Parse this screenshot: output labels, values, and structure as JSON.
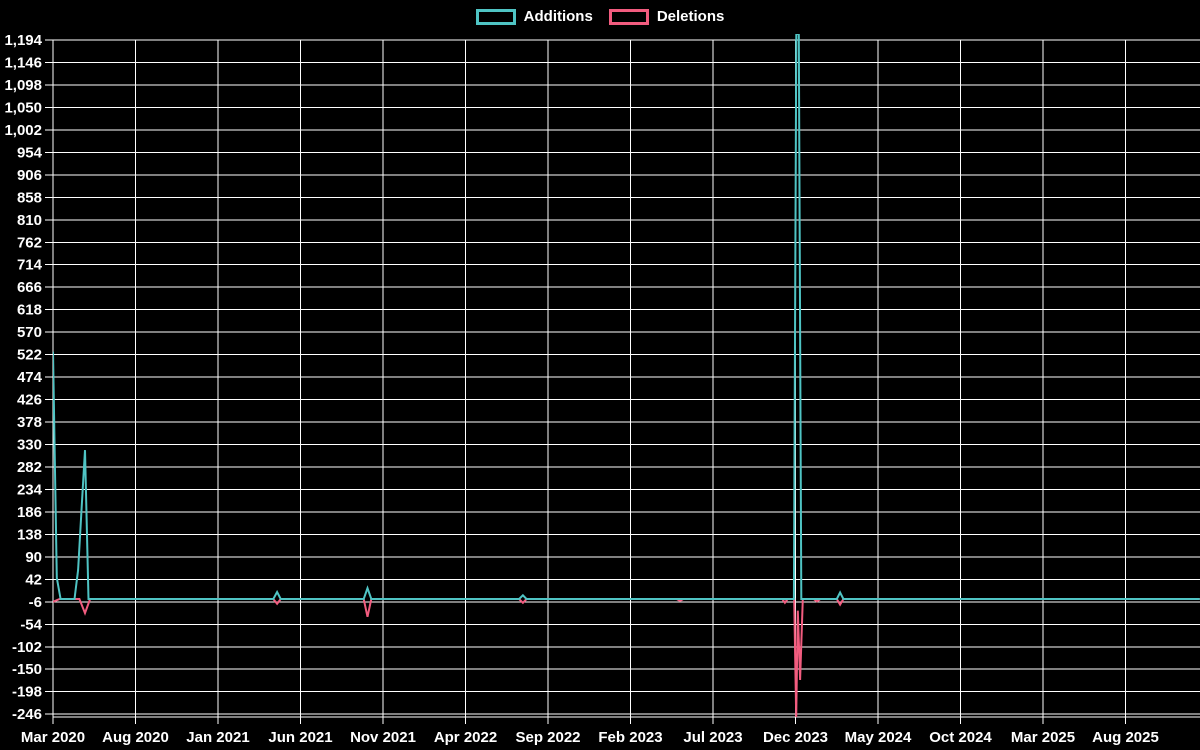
{
  "chart_data": {
    "type": "line",
    "title": "",
    "description": "Weekly additions and deletions over time on a black background (code-frequency style chart)",
    "background": "#000000",
    "grid": true,
    "grid_color": "#ffffff",
    "legend_position": "top-center",
    "xlabel": "",
    "ylabel": "",
    "ylim": [
      -246,
      1194
    ],
    "y_tick_step": 48,
    "x_start": "Mar 2020",
    "x_end": "Aug 2025",
    "x_tick_interval_months": 5,
    "x_tick_labels": [
      "Mar 2020",
      "Aug 2020",
      "Jan 2021",
      "Jun 2021",
      "Nov 2021",
      "Apr 2022",
      "Sep 2022",
      "Feb 2023",
      "Jul 2023",
      "Dec 2023",
      "May 2024",
      "Oct 2024",
      "Mar 2025",
      "Aug 2025"
    ],
    "y_tick_labels": [
      "1,194",
      "1,146",
      "1,098",
      "1,050",
      "1,002",
      "954",
      "906",
      "858",
      "810",
      "762",
      "714",
      "666",
      "618",
      "570",
      "522",
      "474",
      "426",
      "378",
      "330",
      "282",
      "234",
      "186",
      "138",
      "90",
      "42",
      "-6",
      "-54",
      "-102",
      "-150",
      "-198",
      "-246"
    ],
    "series": [
      {
        "name": "Additions",
        "color": "#4fc4c4",
        "points": [
          [
            0,
            528
          ],
          [
            0.23,
            45
          ],
          [
            0.46,
            0
          ],
          [
            1.3,
            0
          ],
          [
            1.52,
            62
          ],
          [
            1.73,
            190
          ],
          [
            1.94,
            318
          ],
          [
            2.15,
            0
          ],
          [
            13.35,
            0
          ],
          [
            13.58,
            15
          ],
          [
            13.8,
            0
          ],
          [
            18.83,
            0
          ],
          [
            19.06,
            23
          ],
          [
            19.29,
            0
          ],
          [
            28.25,
            0
          ],
          [
            28.48,
            8
          ],
          [
            28.7,
            0
          ],
          [
            44.9,
            0
          ],
          [
            45.05,
            1260
          ],
          [
            45.2,
            1260
          ],
          [
            45.35,
            0
          ],
          [
            47.5,
            0
          ],
          [
            47.7,
            14
          ],
          [
            47.9,
            0
          ],
          [
            69.5,
            0
          ]
        ]
      },
      {
        "name": "Deletions",
        "color": "#f25c7f",
        "points": [
          [
            0,
            -6
          ],
          [
            0.4,
            0
          ],
          [
            1.6,
            0
          ],
          [
            1.94,
            -30
          ],
          [
            2.25,
            0
          ],
          [
            13.35,
            0
          ],
          [
            13.58,
            -10
          ],
          [
            13.8,
            0
          ],
          [
            18.83,
            0
          ],
          [
            19.06,
            -38
          ],
          [
            19.29,
            0
          ],
          [
            28.25,
            0
          ],
          [
            28.48,
            -8
          ],
          [
            28.7,
            0
          ],
          [
            37.8,
            0
          ],
          [
            38.0,
            -4
          ],
          [
            38.2,
            0
          ],
          [
            44.2,
            0
          ],
          [
            44.36,
            -8
          ],
          [
            44.52,
            0
          ],
          [
            44.92,
            0
          ],
          [
            45.04,
            -252
          ],
          [
            45.14,
            -25
          ],
          [
            45.28,
            -173
          ],
          [
            45.44,
            0
          ],
          [
            46.1,
            0
          ],
          [
            46.3,
            -5
          ],
          [
            46.5,
            0
          ],
          [
            47.5,
            0
          ],
          [
            47.7,
            -12
          ],
          [
            47.9,
            0
          ],
          [
            69.5,
            0
          ]
        ]
      }
    ],
    "points_format": "[months_since_Mar_2020, value]; series are 0 (flat baseline) everywhere between listed vertices",
    "events": [
      {
        "date": "Mar 2020",
        "additions": 528,
        "deletions": -6
      },
      {
        "date": "Mar 2020",
        "additions": 45,
        "deletions": 0
      },
      {
        "date": "Apr 2020",
        "additions": 62,
        "deletions": 0
      },
      {
        "date": "Apr 2020",
        "additions": 190,
        "deletions": 0
      },
      {
        "date": "May 2020",
        "additions": 318,
        "deletions": -30
      },
      {
        "date": "Apr 2021",
        "additions": 15,
        "deletions": -10
      },
      {
        "date": "Oct 2021",
        "additions": 23,
        "deletions": -38
      },
      {
        "date": "Jul 2022",
        "additions": 8,
        "deletions": -8
      },
      {
        "date": "May 2023",
        "additions": 0,
        "deletions": -4
      },
      {
        "date": "Nov 2023",
        "additions": 0,
        "deletions": -8
      },
      {
        "date": "Dec 2023",
        "additions": 1194,
        "deletions": -246,
        "note": "spike clipped at chart bounds; peak exceeds axis range"
      },
      {
        "date": "Dec 2023",
        "additions": 0,
        "deletions": -173
      },
      {
        "date": "Jan 2024",
        "additions": 0,
        "deletions": -5
      },
      {
        "date": "Feb 2024",
        "additions": 14,
        "deletions": -12
      }
    ]
  }
}
